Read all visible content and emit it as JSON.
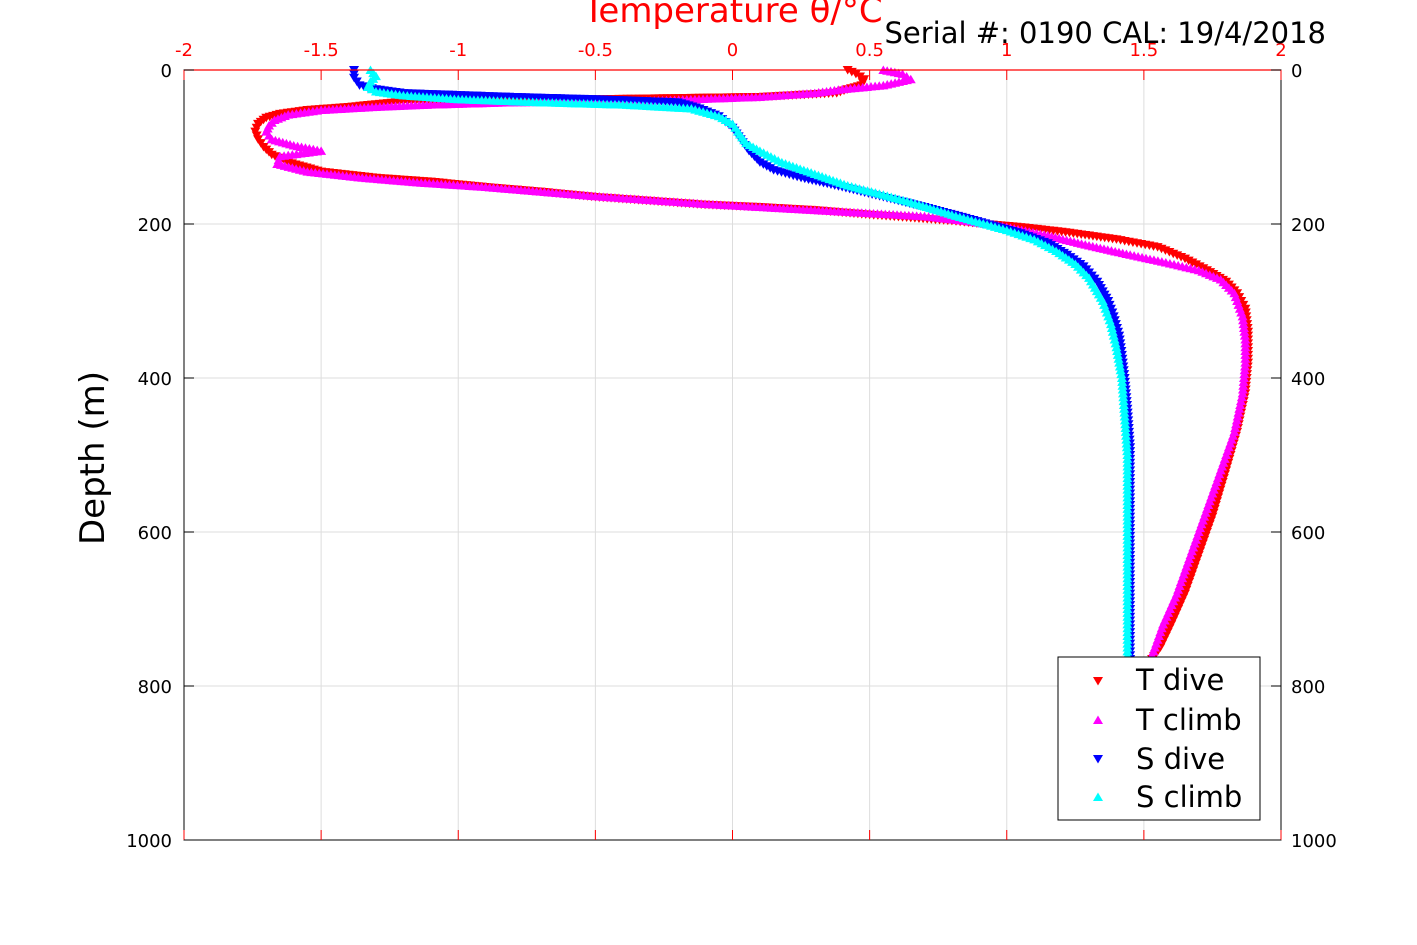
{
  "header": {
    "x_axis_title": "Temperature θ/°C",
    "serial_text": "Serial #: 0190  CAL: 19/4/2018"
  },
  "colors": {
    "t_dive": "#ff0000",
    "t_climb": "#ff00ff",
    "s_dive": "#0000ff",
    "s_climb": "#00ffff",
    "top_axis": "#ff0000",
    "grid": "#dddddd"
  },
  "chart_data": {
    "type": "scatter",
    "title": "",
    "xlabel": "Temperature θ/°C",
    "ylabel": "Depth (m)",
    "xlim": [
      -2,
      2
    ],
    "ylim": [
      1000,
      0
    ],
    "x_ticks": [
      "-2",
      "-1.5",
      "-1",
      "-0.5",
      "0",
      "0.5",
      "1",
      "1.5",
      "2"
    ],
    "y_ticks_left": [
      "0",
      "200",
      "400",
      "600",
      "800",
      "1000"
    ],
    "y_ticks_right": [
      "0",
      "200",
      "400",
      "600",
      "800",
      "1000"
    ],
    "grid": true,
    "legend_position": "bottom-right",
    "series": [
      {
        "name": "T dive",
        "marker": "triangle-down",
        "points": [
          [
            0.42,
            0
          ],
          [
            0.45,
            5
          ],
          [
            0.48,
            12
          ],
          [
            0.47,
            20
          ],
          [
            0.42,
            25
          ],
          [
            0.38,
            30
          ],
          [
            0.1,
            35
          ],
          [
            -0.5,
            38
          ],
          [
            -1.2,
            41
          ],
          [
            -1.4,
            48
          ],
          [
            -1.55,
            52
          ],
          [
            -1.65,
            57
          ],
          [
            -1.7,
            62
          ],
          [
            -1.73,
            70
          ],
          [
            -1.74,
            80
          ],
          [
            -1.73,
            90
          ],
          [
            -1.71,
            100
          ],
          [
            -1.68,
            110
          ],
          [
            -1.62,
            120
          ],
          [
            -1.5,
            132
          ],
          [
            -1.3,
            140
          ],
          [
            -1.1,
            145
          ],
          [
            -0.9,
            152
          ],
          [
            -0.7,
            158
          ],
          [
            -0.5,
            165
          ],
          [
            -0.3,
            170
          ],
          [
            -0.1,
            175
          ],
          [
            0.1,
            178
          ],
          [
            0.3,
            182
          ],
          [
            0.5,
            188
          ],
          [
            0.65,
            192
          ],
          [
            0.8,
            196
          ],
          [
            0.92,
            200
          ],
          [
            1.05,
            204
          ],
          [
            1.2,
            210
          ],
          [
            1.4,
            220
          ],
          [
            1.55,
            230
          ],
          [
            1.65,
            245
          ],
          [
            1.73,
            260
          ],
          [
            1.8,
            275
          ],
          [
            1.84,
            290
          ],
          [
            1.87,
            310
          ],
          [
            1.88,
            340
          ],
          [
            1.88,
            380
          ],
          [
            1.87,
            420
          ],
          [
            1.84,
            470
          ],
          [
            1.8,
            520
          ],
          [
            1.75,
            580
          ],
          [
            1.7,
            630
          ],
          [
            1.65,
            680
          ],
          [
            1.6,
            720
          ],
          [
            1.56,
            750
          ],
          [
            1.53,
            765
          ]
        ]
      },
      {
        "name": "T climb",
        "marker": "triangle-up",
        "points": [
          [
            0.55,
            0
          ],
          [
            0.62,
            5
          ],
          [
            0.65,
            12
          ],
          [
            0.55,
            20
          ],
          [
            0.4,
            25
          ],
          [
            0.3,
            30
          ],
          [
            0.1,
            35
          ],
          [
            -0.3,
            40
          ],
          [
            -0.8,
            42
          ],
          [
            -1.1,
            45
          ],
          [
            -1.3,
            48
          ],
          [
            -1.5,
            52
          ],
          [
            -1.62,
            58
          ],
          [
            -1.67,
            65
          ],
          [
            -1.69,
            72
          ],
          [
            -1.7,
            80
          ],
          [
            -1.68,
            90
          ],
          [
            -1.6,
            98
          ],
          [
            -1.5,
            105
          ],
          [
            -1.65,
            112
          ],
          [
            -1.66,
            122
          ],
          [
            -1.55,
            132
          ],
          [
            -1.35,
            140
          ],
          [
            -1.15,
            146
          ],
          [
            -0.9,
            152
          ],
          [
            -0.7,
            158
          ],
          [
            -0.5,
            164
          ],
          [
            -0.3,
            169
          ],
          [
            -0.1,
            174
          ],
          [
            0.1,
            178
          ],
          [
            0.3,
            182
          ],
          [
            0.5,
            186
          ],
          [
            0.7,
            190
          ],
          [
            0.85,
            196
          ],
          [
            1.0,
            204
          ],
          [
            1.15,
            215
          ],
          [
            1.3,
            228
          ],
          [
            1.45,
            240
          ],
          [
            1.58,
            250
          ],
          [
            1.7,
            260
          ],
          [
            1.78,
            272
          ],
          [
            1.83,
            290
          ],
          [
            1.86,
            320
          ],
          [
            1.87,
            350
          ],
          [
            1.87,
            380
          ],
          [
            1.86,
            420
          ],
          [
            1.83,
            470
          ],
          [
            1.78,
            520
          ],
          [
            1.72,
            580
          ],
          [
            1.67,
            630
          ],
          [
            1.62,
            680
          ],
          [
            1.57,
            720
          ],
          [
            1.54,
            750
          ],
          [
            1.52,
            770
          ]
        ]
      },
      {
        "name": "S dive",
        "marker": "triangle-down",
        "points": [
          [
            -1.38,
            0
          ],
          [
            -1.38,
            10
          ],
          [
            -1.36,
            20
          ],
          [
            -1.3,
            25
          ],
          [
            -1.2,
            30
          ],
          [
            -0.8,
            35
          ],
          [
            -0.5,
            38
          ],
          [
            -0.2,
            42
          ],
          [
            -0.12,
            50
          ],
          [
            -0.05,
            60
          ],
          [
            0.0,
            75
          ],
          [
            0.03,
            90
          ],
          [
            0.06,
            105
          ],
          [
            0.1,
            120
          ],
          [
            0.15,
            130
          ],
          [
            0.25,
            140
          ],
          [
            0.4,
            152
          ],
          [
            0.55,
            165
          ],
          [
            0.7,
            178
          ],
          [
            0.85,
            192
          ],
          [
            0.95,
            202
          ],
          [
            1.05,
            212
          ],
          [
            1.15,
            225
          ],
          [
            1.22,
            240
          ],
          [
            1.28,
            255
          ],
          [
            1.33,
            275
          ],
          [
            1.37,
            300
          ],
          [
            1.39,
            320
          ],
          [
            1.41,
            345
          ],
          [
            1.42,
            370
          ],
          [
            1.43,
            400
          ],
          [
            1.44,
            440
          ],
          [
            1.45,
            490
          ],
          [
            1.45,
            540
          ],
          [
            1.45,
            600
          ],
          [
            1.45,
            650
          ],
          [
            1.45,
            700
          ],
          [
            1.45,
            750
          ],
          [
            1.45,
            770
          ]
        ]
      },
      {
        "name": "S climb",
        "marker": "triangle-up",
        "points": [
          [
            -1.32,
            0
          ],
          [
            -1.3,
            8
          ],
          [
            -1.32,
            15
          ],
          [
            -1.33,
            22
          ],
          [
            -1.3,
            28
          ],
          [
            -1.2,
            33
          ],
          [
            -1.0,
            38
          ],
          [
            -0.7,
            42
          ],
          [
            -0.4,
            45
          ],
          [
            -0.15,
            50
          ],
          [
            -0.05,
            60
          ],
          [
            0.0,
            70
          ],
          [
            0.02,
            80
          ],
          [
            0.05,
            95
          ],
          [
            0.1,
            105
          ],
          [
            0.18,
            120
          ],
          [
            0.3,
            135
          ],
          [
            0.42,
            150
          ],
          [
            0.55,
            162
          ],
          [
            0.68,
            175
          ],
          [
            0.8,
            188
          ],
          [
            0.9,
            198
          ],
          [
            1.0,
            208
          ],
          [
            1.1,
            220
          ],
          [
            1.18,
            235
          ],
          [
            1.25,
            252
          ],
          [
            1.3,
            270
          ],
          [
            1.35,
            300
          ],
          [
            1.38,
            330
          ],
          [
            1.4,
            360
          ],
          [
            1.42,
            400
          ],
          [
            1.43,
            450
          ],
          [
            1.44,
            500
          ],
          [
            1.44,
            550
          ],
          [
            1.44,
            600
          ],
          [
            1.44,
            650
          ],
          [
            1.44,
            700
          ],
          [
            1.44,
            750
          ],
          [
            1.44,
            770
          ]
        ]
      }
    ]
  }
}
